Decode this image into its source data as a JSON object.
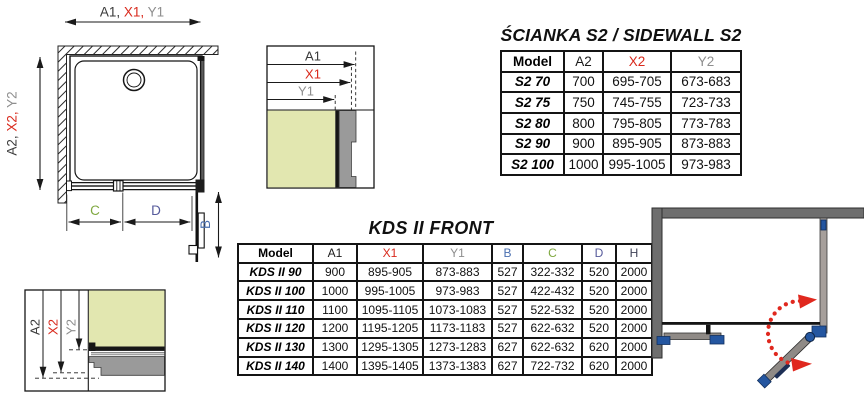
{
  "colors": {
    "red": "#d9291c",
    "gray": "#8e8e8e",
    "dark": "#3a3a3a",
    "b_blue": "#4a6fb0",
    "c_green": "#7fa840",
    "d_slate": "#565a9b",
    "h_dark": "#3f4257",
    "glass_olive": "#e2e7b0",
    "hardware_blue": "#2456a0",
    "handle_navy": "#1d2f55",
    "wall_gray": "#6e6e6e",
    "panel_gray": "#a69f9b",
    "door_gray": "#8f8a86",
    "swing_red": "#e0281e",
    "line_black": "#161616"
  },
  "diagrams": {
    "main": {
      "top": [
        "A1, ",
        "X1, ",
        "Y1"
      ],
      "left": [
        "A2, ",
        "X2, ",
        "Y2"
      ],
      "c": "C",
      "d": "D",
      "b": "B"
    },
    "detail_top": [
      "A1",
      "X1",
      "Y1"
    ],
    "detail_bottom": [
      "A2",
      "X2",
      "Y2"
    ]
  },
  "tables": {
    "sidewall": {
      "title": "ŚCIANKA S2 / SIDEWALL S2",
      "columns": [
        {
          "label": "Model",
          "color": "#000000"
        },
        {
          "label": "A2",
          "color": "#1a1a1a"
        },
        {
          "label": "X2",
          "color": "#d9291c"
        },
        {
          "label": "Y2",
          "color": "#8e8e8e"
        }
      ],
      "rows": [
        [
          "S2 70",
          "700",
          "695-705",
          "673-683"
        ],
        [
          "S2 75",
          "750",
          "745-755",
          "723-733"
        ],
        [
          "S2 80",
          "800",
          "795-805",
          "773-783"
        ],
        [
          "S2 90",
          "900",
          "895-905",
          "873-883"
        ],
        [
          "S2 100",
          "1000",
          "995-1005",
          "973-983"
        ]
      ]
    },
    "front": {
      "title": "KDS II FRONT",
      "columns": [
        {
          "label": "Model",
          "color": "#000000"
        },
        {
          "label": "A1",
          "color": "#1a1a1a"
        },
        {
          "label": "X1",
          "color": "#d9291c"
        },
        {
          "label": "Y1",
          "color": "#8e8e8e"
        },
        {
          "label": "B",
          "color": "#4a6fb0"
        },
        {
          "label": "C",
          "color": "#7fa840"
        },
        {
          "label": "D",
          "color": "#565a9b"
        },
        {
          "label": "H",
          "color": "#3f4257"
        }
      ],
      "rows": [
        [
          "KDS II 90",
          "900",
          "895-905",
          "873-883",
          "527",
          "322-332",
          "520",
          "2000"
        ],
        [
          "KDS II 100",
          "1000",
          "995-1005",
          "973-983",
          "527",
          "422-432",
          "520",
          "2000"
        ],
        [
          "KDS II 110",
          "1100",
          "1095-1105",
          "1073-1083",
          "527",
          "522-532",
          "520",
          "2000"
        ],
        [
          "KDS II 120",
          "1200",
          "1195-1205",
          "1173-1183",
          "527",
          "622-632",
          "520",
          "2000"
        ],
        [
          "KDS II 130",
          "1300",
          "1295-1305",
          "1273-1283",
          "627",
          "622-632",
          "620",
          "2000"
        ],
        [
          "KDS II 140",
          "1400",
          "1395-1405",
          "1373-1383",
          "627",
          "722-732",
          "620",
          "2000"
        ]
      ]
    }
  }
}
